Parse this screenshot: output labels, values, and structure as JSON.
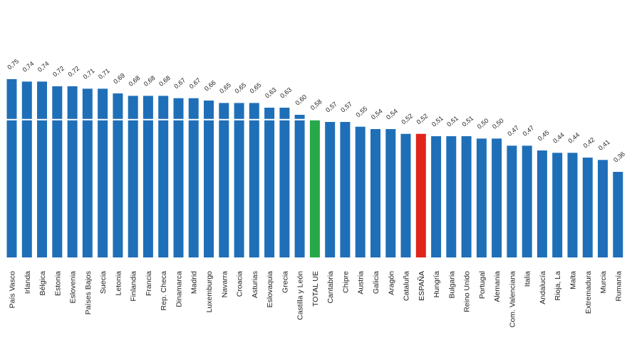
{
  "chart_data": {
    "type": "bar",
    "title": "",
    "xlabel": "",
    "ylabel": "",
    "ylim": [
      0,
      0.77
    ],
    "grid": false,
    "legend": "none",
    "reference_line": {
      "value": 0.58,
      "color": "#ffffff"
    },
    "colors": {
      "default": "#1f6fb8",
      "total_ue": "#27a84a",
      "espana": "#e1251b"
    },
    "categories": [
      "País Vasco",
      "Irlanda",
      "Bélgica",
      "Estonia",
      "Eslovenia",
      "Países Bajos",
      "Suecia",
      "Letonia",
      "Finlandia",
      "Francia",
      "Rep. Checa",
      "Dinamarca",
      "Madrid",
      "Luxemburgo",
      "Navarra",
      "Croacia",
      "Asturias",
      "Eslovaquia",
      "Grecia",
      "Castilla y León",
      "TOTAL UE",
      "Cantabria",
      "Chipre",
      "Austria",
      "Galicia",
      "Aragón",
      "Cataluña",
      "ESPAÑA",
      "Hungría",
      "Bulgaria",
      "Reino Unido",
      "Portugal",
      "Alemania",
      "Com. Valenciana",
      "Italia",
      "Andalucía",
      "Rioja, La",
      "Malta",
      "Extremadura",
      "Murcia",
      "Rumanía"
    ],
    "value_labels": [
      "0,75",
      "0,74",
      "0,74",
      "0,72",
      "0,72",
      "0,71",
      "0,71",
      "0,69",
      "0,68",
      "0,68",
      "0,68",
      "0,67",
      "0,67",
      "0,66",
      "0,65",
      "0,65",
      "0,65",
      "0,63",
      "0,63",
      "0,60",
      "0,58",
      "0,57",
      "0,57",
      "0,55",
      "0,54",
      "0,54",
      "0,52",
      "0,52",
      "0,51",
      "0,51",
      "0,51",
      "0,50",
      "0,50",
      "0,47",
      "0,47",
      "0,45",
      "0,44",
      "0,44",
      "0,42",
      "0,41",
      "0,36"
    ],
    "values": [
      0.75,
      0.74,
      0.74,
      0.72,
      0.72,
      0.71,
      0.71,
      0.69,
      0.68,
      0.68,
      0.68,
      0.67,
      0.67,
      0.66,
      0.65,
      0.65,
      0.65,
      0.63,
      0.63,
      0.6,
      0.58,
      0.57,
      0.57,
      0.55,
      0.54,
      0.54,
      0.52,
      0.52,
      0.51,
      0.51,
      0.51,
      0.5,
      0.5,
      0.47,
      0.47,
      0.45,
      0.44,
      0.44,
      0.42,
      0.41,
      0.36
    ],
    "highlight": {
      "TOTAL UE": "total_ue",
      "ESPAÑA": "espana"
    }
  }
}
